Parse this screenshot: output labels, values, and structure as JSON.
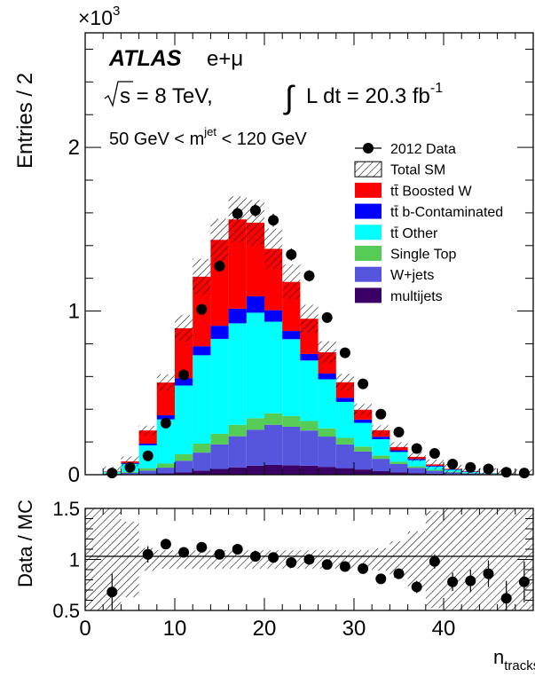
{
  "chart_data": {
    "type": "bar",
    "stacked": true,
    "xlabel_main": "n",
    "xlabel_sub": "tracks",
    "ylabel": "Entries / 2",
    "ylabel_ratio": "Data / MC",
    "y_multiplier": "×10",
    "y_multiplier_exp": "3",
    "experiment": "ATLAS",
    "channel": "e+μ",
    "energy_text": "s = 8 TeV,",
    "lumi_text": "L dt = 20.3 fb",
    "lumi_exp": "-1",
    "selection_pre": "50 GeV < m",
    "selection_sup": "jet",
    "selection_post": " < 120 GeV",
    "x_range": [
      0,
      50
    ],
    "bin_width": 2,
    "y_range": [
      0,
      2700
    ],
    "ratio_range": [
      0.5,
      1.5
    ],
    "x_ticks": [
      "0",
      "10",
      "20",
      "30",
      "40"
    ],
    "y_ticks": [
      {
        "value": 0,
        "label": "0"
      },
      {
        "value": 1000,
        "label": "1"
      },
      {
        "value": 2000,
        "label": "2"
      }
    ],
    "ratio_ticks": [
      {
        "value": 0.5,
        "label": "0.5"
      },
      {
        "value": 1.0,
        "label": "1"
      },
      {
        "value": 1.5,
        "label": "1.5"
      }
    ],
    "bin_edges": [
      0,
      2,
      4,
      6,
      8,
      10,
      12,
      14,
      16,
      18,
      20,
      22,
      24,
      26,
      28,
      30,
      32,
      34,
      36,
      38,
      40,
      42,
      44,
      46,
      48,
      50
    ],
    "series": [
      {
        "name": "multijets",
        "color": "#3b0066",
        "values": [
          0,
          2,
          3,
          5,
          8,
          15,
          25,
          35,
          45,
          55,
          60,
          58,
          55,
          48,
          40,
          32,
          22,
          15,
          10,
          6,
          4,
          2,
          1,
          1,
          0
        ]
      },
      {
        "name": "W+jets",
        "color": "#5555dd",
        "values": [
          0,
          3,
          8,
          20,
          35,
          70,
          110,
          150,
          190,
          220,
          245,
          235,
          215,
          185,
          145,
          110,
          75,
          50,
          32,
          18,
          10,
          6,
          3,
          2,
          1
        ]
      },
      {
        "name": "Single Top",
        "color": "#55cc55",
        "values": [
          0,
          2,
          5,
          15,
          25,
          40,
          55,
          65,
          70,
          70,
          70,
          65,
          58,
          50,
          40,
          30,
          20,
          14,
          9,
          6,
          4,
          2,
          1,
          1,
          0
        ]
      },
      {
        "name": "tt̄ Other",
        "color": "#00ffff",
        "values": [
          0,
          10,
          50,
          140,
          270,
          420,
          540,
          580,
          620,
          645,
          560,
          470,
          370,
          300,
          220,
          145,
          100,
          60,
          38,
          20,
          12,
          7,
          3,
          2,
          1
        ]
      },
      {
        "name": "tt̄ b-Contaminated",
        "color": "#0000ff",
        "values": [
          0,
          1,
          5,
          10,
          25,
          45,
          55,
          80,
          90,
          100,
          70,
          50,
          40,
          35,
          25,
          20,
          15,
          10,
          7,
          5,
          3,
          2,
          1,
          1,
          0
        ]
      },
      {
        "name": "tt̄ Boosted W",
        "color": "#ff0000",
        "values": [
          0,
          2,
          10,
          80,
          200,
          305,
          425,
          525,
          545,
          450,
          375,
          300,
          215,
          130,
          95,
          60,
          40,
          20,
          13,
          8,
          3,
          2,
          1,
          1,
          0
        ]
      }
    ],
    "total_sm": [
      0,
      20,
      81,
      270,
      563,
      895,
      1210,
      1435,
      1560,
      1540,
      1380,
      1178,
      953,
      748,
      565,
      397,
      272,
      169,
      109,
      63,
      36,
      21,
      10,
      8,
      2
    ],
    "data_label": "2012 Data",
    "data": {
      "x": [
        3,
        5,
        7,
        9,
        11,
        13,
        15,
        17,
        19,
        21,
        23,
        25,
        27,
        29,
        31,
        33,
        35,
        37,
        39,
        41,
        43,
        45,
        47,
        49
      ],
      "y": [
        10,
        45,
        115,
        315,
        610,
        1010,
        1275,
        1595,
        1615,
        1555,
        1345,
        1215,
        960,
        745,
        555,
        370,
        260,
        160,
        130,
        65,
        45,
        35,
        15,
        10
      ]
    },
    "ratio": {
      "x": [
        3,
        7,
        9,
        11,
        13,
        15,
        17,
        19,
        21,
        23,
        25,
        27,
        29,
        31,
        33,
        35,
        37,
        39,
        41,
        43,
        45,
        47,
        49
      ],
      "y": [
        0.68,
        1.05,
        1.15,
        1.07,
        1.12,
        1.05,
        1.1,
        1.03,
        1.02,
        0.97,
        1.0,
        0.95,
        0.93,
        0.91,
        0.81,
        0.86,
        0.73,
        0.98,
        0.78,
        0.79,
        0.86,
        0.62,
        0.78
      ],
      "err": [
        0.18,
        0.08,
        0.05,
        0.03,
        0.03,
        0.02,
        0.02,
        0.02,
        0.02,
        0.02,
        0.02,
        0.02,
        0.03,
        0.03,
        0.04,
        0.05,
        0.06,
        0.07,
        0.09,
        0.11,
        0.13,
        0.17,
        0.2
      ]
    },
    "legend": [
      "2012 Data",
      "Total SM",
      "tt̄ Boosted W",
      "tt̄ b-Contaminated",
      "tt̄ Other",
      "Single Top",
      "W+jets",
      "multijets"
    ]
  }
}
